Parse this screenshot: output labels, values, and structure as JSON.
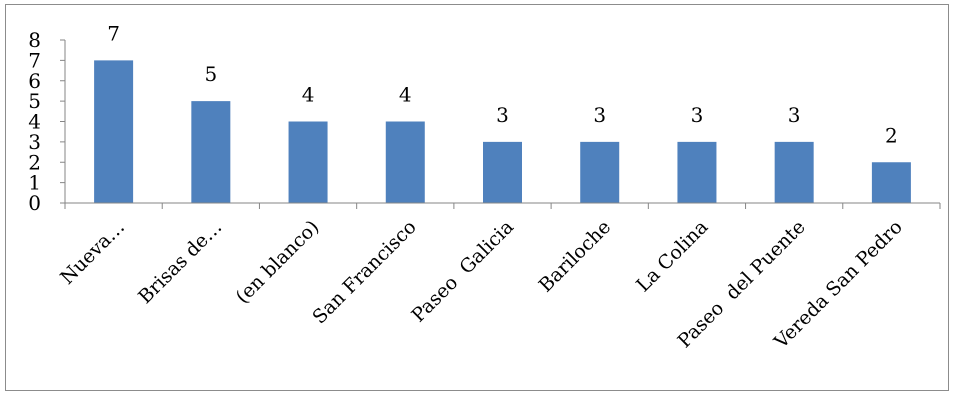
{
  "chart_data": {
    "type": "bar",
    "title": "",
    "xlabel": "",
    "ylabel": "",
    "categories": [
      "Nueva…",
      "Brisas de…",
      "(en blanco)",
      "San Francisco",
      "Paseo  Galicia",
      "Bariloche",
      "La Colina",
      "Paseo  del Puente",
      "Vereda San Pedro"
    ],
    "values": [
      7,
      5,
      4,
      4,
      3,
      3,
      3,
      3,
      2
    ],
    "ylim": [
      0,
      8
    ],
    "yticks": [
      "0",
      "1",
      "2",
      "3",
      "4",
      "5",
      "6",
      "7",
      "8"
    ],
    "data_labels": [
      "7",
      "5",
      "4",
      "4",
      "3",
      "3",
      "3",
      "3",
      "2"
    ],
    "grid": false,
    "legend": "none",
    "colors": {
      "bar": "#4f81bd",
      "axis": "#868686"
    }
  }
}
